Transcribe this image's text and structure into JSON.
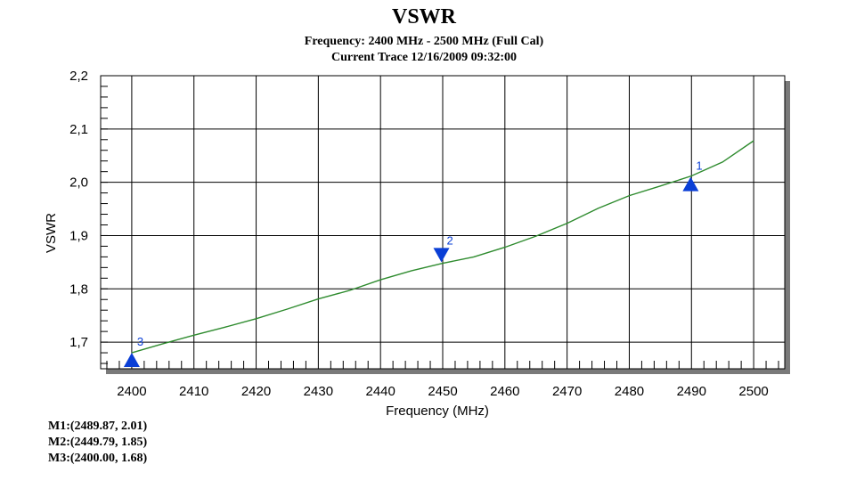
{
  "chart_data": {
    "type": "line",
    "title": "VSWR",
    "subtitle_lines": [
      "Frequency: 2400 MHz - 2500 MHz (Full Cal)",
      "Current Trace 12/16/2009 09:32:00"
    ],
    "xlabel": "Frequency (MHz)",
    "ylabel": "VSWR",
    "xlim": [
      2395,
      2505
    ],
    "ylim": [
      1.65,
      2.2
    ],
    "x_ticks": [
      2400,
      2410,
      2420,
      2430,
      2440,
      2450,
      2460,
      2470,
      2480,
      2490,
      2500
    ],
    "y_ticks": [
      1.7,
      1.8,
      1.9,
      2.0,
      2.1,
      2.2
    ],
    "y_tick_labels": [
      "1,7",
      "1,8",
      "1,9",
      "2,0",
      "2,1",
      "2,2"
    ],
    "grid": true,
    "series": [
      {
        "color": "#2e8b2e",
        "x": [
          2400,
          2405,
          2410,
          2415,
          2420,
          2425,
          2430,
          2435,
          2440,
          2445,
          2450,
          2455,
          2460,
          2465,
          2470,
          2475,
          2480,
          2485,
          2490,
          2495,
          2500
        ],
        "y": [
          1.68,
          1.697,
          1.713,
          1.728,
          1.744,
          1.762,
          1.781,
          1.797,
          1.817,
          1.834,
          1.848,
          1.86,
          1.878,
          1.899,
          1.923,
          1.951,
          1.975,
          1.993,
          2.012,
          2.038,
          2.078
        ]
      }
    ],
    "markers": [
      {
        "id": "1",
        "x": 2489.87,
        "y": 2.01,
        "direction": "up"
      },
      {
        "id": "2",
        "x": 2449.79,
        "y": 1.85,
        "direction": "down"
      },
      {
        "id": "3",
        "x": 2400.0,
        "y": 1.68,
        "direction": "up"
      }
    ],
    "marker_color": "#0a3fd6"
  },
  "marker_readouts": [
    "M1:(2489.87,  2.01)",
    "M2:(2449.79,  1.85)",
    "M3:(2400.00,  1.68)"
  ]
}
